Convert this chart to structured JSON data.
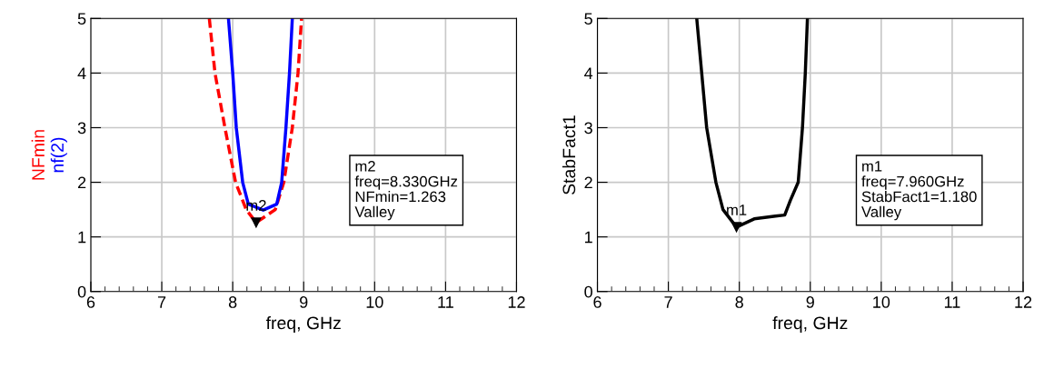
{
  "chart_data": [
    {
      "type": "line",
      "xlabel": "freq, GHz",
      "xlim": [
        6,
        12
      ],
      "xticks": [
        6,
        7,
        8,
        9,
        10,
        11,
        12
      ],
      "ylim": [
        0,
        5
      ],
      "yticks": [
        0,
        1,
        2,
        3,
        4,
        5
      ],
      "grid": true,
      "legend": "left",
      "line_style": "solid",
      "marker": "none",
      "series": [
        {
          "name": "NFmin",
          "color": "#ff0000",
          "line_style": "dashed",
          "x": [
            7.67,
            7.75,
            7.89,
            8.04,
            8.19,
            8.33,
            8.6,
            8.72,
            8.84,
            8.92,
            8.97
          ],
          "values": [
            5,
            4,
            3,
            2,
            1.5,
            1.263,
            1.5,
            2,
            3,
            4,
            5
          ]
        },
        {
          "name": "nf(2)",
          "color": "#0000ff",
          "x": [
            7.94,
            8.0,
            8.05,
            8.14,
            8.22,
            8.43,
            8.62,
            8.69,
            8.75,
            8.8,
            8.84
          ],
          "values": [
            5,
            4,
            3,
            2,
            1.6,
            1.49,
            1.6,
            2,
            3,
            4,
            5
          ]
        }
      ],
      "annotations": [
        {
          "text": "m2",
          "x": 8.33,
          "y": 1.263
        },
        "m2\nfreq=8.330GHz\nNFmin=1.263\nValley"
      ]
    },
    {
      "type": "line",
      "xlabel": "freq, GHz",
      "ylabel": "StabFact1",
      "xlim": [
        6,
        12
      ],
      "xticks": [
        6,
        7,
        8,
        9,
        10,
        11,
        12
      ],
      "ylim": [
        0,
        5
      ],
      "yticks": [
        0,
        1,
        2,
        3,
        4,
        5
      ],
      "grid": true,
      "line_style": "solid",
      "marker": "none",
      "series": [
        {
          "color": "#000000",
          "x": [
            7.4,
            7.47,
            7.54,
            7.67,
            7.77,
            7.96,
            8.21,
            8.51,
            8.64,
            8.72,
            8.83,
            8.89,
            8.93,
            8.96
          ],
          "values": [
            5,
            4,
            3,
            2,
            1.5,
            1.18,
            1.33,
            1.38,
            1.4,
            1.67,
            2,
            3,
            4,
            5
          ]
        }
      ],
      "annotations": [
        {
          "text": "m1",
          "x": 7.96,
          "y": 1.18
        },
        "m1\nfreq=7.960GHz\nStabFact1=1.180\nValley"
      ]
    }
  ]
}
